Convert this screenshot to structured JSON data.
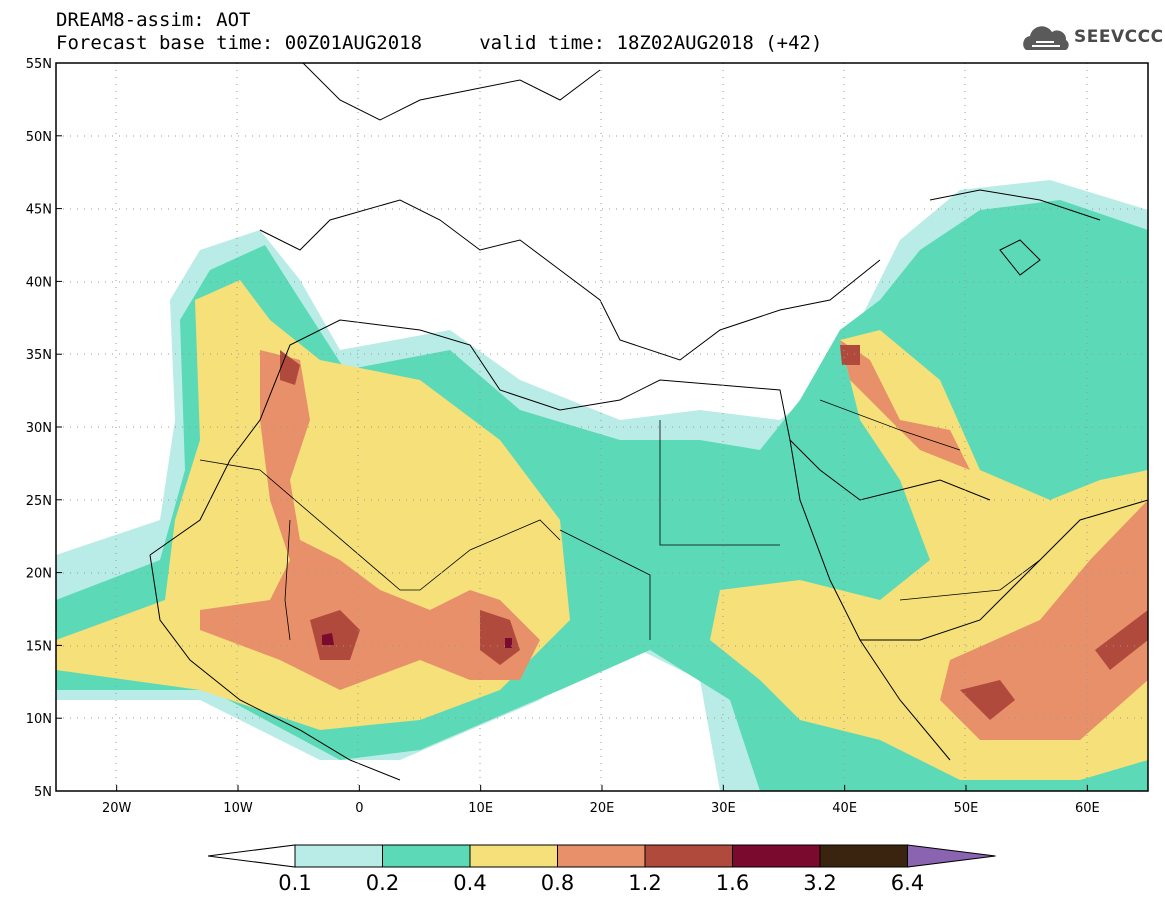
{
  "header": {
    "title_line1": "DREAM8-assim: AOT",
    "title_line2": "Forecast base time: 00Z01AUG2018     valid time: 18Z02AUG2018 (+42)",
    "logo_text": "SEEVCCC",
    "logo_icon": "cloud-icon"
  },
  "map": {
    "lon_range": [
      -25,
      65
    ],
    "lat_range": [
      5,
      55
    ],
    "lat_labels": [
      {
        "value": 55,
        "label": "55N"
      },
      {
        "value": 50,
        "label": "50N"
      },
      {
        "value": 45,
        "label": "45N"
      },
      {
        "value": 40,
        "label": "40N"
      },
      {
        "value": 35,
        "label": "35N"
      },
      {
        "value": 30,
        "label": "30N"
      },
      {
        "value": 25,
        "label": "25N"
      },
      {
        "value": 20,
        "label": "20N"
      },
      {
        "value": 15,
        "label": "15N"
      },
      {
        "value": 10,
        "label": "10N"
      },
      {
        "value": 5,
        "label": "5N"
      }
    ],
    "lon_labels": [
      {
        "value": -20,
        "label": "20W"
      },
      {
        "value": -10,
        "label": "10W"
      },
      {
        "value": 0,
        "label": "0"
      },
      {
        "value": 10,
        "label": "10E"
      },
      {
        "value": 20,
        "label": "20E"
      },
      {
        "value": 30,
        "label": "30E"
      },
      {
        "value": 40,
        "label": "40E"
      },
      {
        "value": 50,
        "label": "50E"
      },
      {
        "value": 60,
        "label": "60E"
      }
    ],
    "grid": "dotted"
  },
  "legend": {
    "levels": [
      "0.1",
      "0.2",
      "0.4",
      "0.8",
      "1.2",
      "1.6",
      "3.2",
      "6.4"
    ],
    "colors": [
      "#b9ece6",
      "#5cd9b6",
      "#f5e07a",
      "#e8906a",
      "#b04a3c",
      "#7a0a2e",
      "#3a2410",
      "#8a64b0"
    ]
  }
}
